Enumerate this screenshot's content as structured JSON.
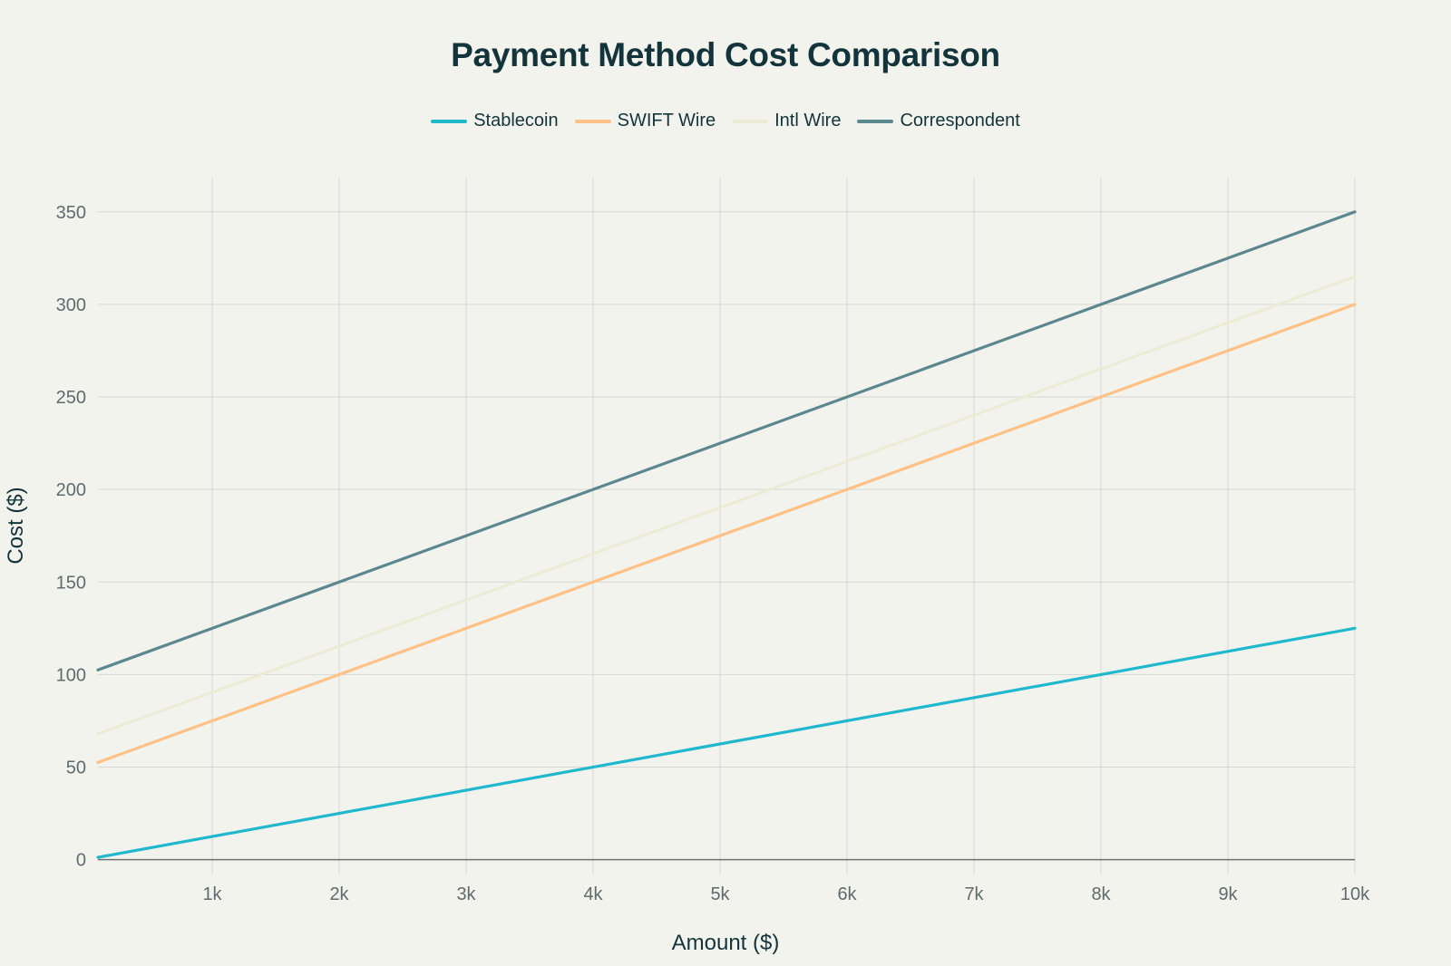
{
  "chart_data": {
    "type": "line",
    "title": "Payment Method Cost Comparison",
    "xlabel": "Amount ($)",
    "ylabel": "Cost ($)",
    "xlim": [
      100,
      10000
    ],
    "ylim": [
      -8,
      368
    ],
    "x_ticks": [
      1000,
      2000,
      3000,
      4000,
      5000,
      6000,
      7000,
      8000,
      9000,
      10000
    ],
    "x_tick_labels": [
      "1k",
      "2k",
      "3k",
      "4k",
      "5k",
      "6k",
      "7k",
      "8k",
      "9k",
      "10k"
    ],
    "y_ticks": [
      0,
      50,
      100,
      150,
      200,
      250,
      300,
      350
    ],
    "y_tick_labels": [
      "0",
      "50",
      "100",
      "150",
      "200",
      "250",
      "300",
      "350"
    ],
    "grid": true,
    "legend_position": "top-center",
    "x": [
      100,
      10000
    ],
    "series": [
      {
        "name": "Stablecoin",
        "color": "#1fb8cd",
        "values": [
          1.25,
          125
        ]
      },
      {
        "name": "SWIFT Wire",
        "color": "#ffc185",
        "values": [
          52.5,
          300
        ]
      },
      {
        "name": "Intl Wire",
        "color": "#ecebd5",
        "values": [
          68,
          315
        ]
      },
      {
        "name": "Correspondent",
        "color": "#5d878f",
        "values": [
          102.5,
          350
        ]
      }
    ]
  }
}
